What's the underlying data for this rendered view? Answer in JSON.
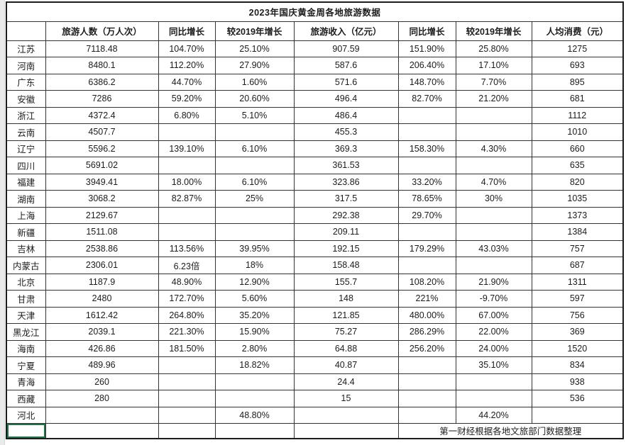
{
  "title": "2023年国庆黄金周各地旅游数据",
  "source_note": "第一财经根据各地文旅部门数据整理",
  "colors": {
    "grid_line": "#333333",
    "outer_border": "#1c1c1c",
    "selection_green": "#217346",
    "text": "#1c1c1c",
    "page_margin_gray": "#eaeaea"
  },
  "table": {
    "headers": [
      "",
      "旅游人数（万人次）",
      "同比增长",
      "较2019年增长",
      "旅游收入（亿元）",
      "同比增长",
      "较2019年增长",
      "人均消费（元）"
    ],
    "rows": [
      [
        "江苏",
        "7118.48",
        "104.70%",
        "25.10%",
        "907.59",
        "151.90%",
        "25.80%",
        "1275"
      ],
      [
        "河南",
        "8480.1",
        "112.20%",
        "27.90%",
        "587.6",
        "206.40%",
        "17.10%",
        "693"
      ],
      [
        "广东",
        "6386.2",
        "44.70%",
        "1.60%",
        "571.6",
        "148.70%",
        "7.70%",
        "895"
      ],
      [
        "安徽",
        "7286",
        "59.20%",
        "20.60%",
        "496.4",
        "82.70%",
        "21.20%",
        "681"
      ],
      [
        "浙江",
        "4372.4",
        "6.80%",
        "5.10%",
        "486.4",
        "",
        "",
        "1112"
      ],
      [
        "云南",
        "4507.7",
        "",
        "",
        "455.3",
        "",
        "",
        "1010"
      ],
      [
        "辽宁",
        "5596.2",
        "139.10%",
        "6.10%",
        "369.3",
        "158.30%",
        "4.30%",
        "660"
      ],
      [
        "四川",
        "5691.02",
        "",
        "",
        "361.53",
        "",
        "",
        "635"
      ],
      [
        "福建",
        "3949.41",
        "18.00%",
        "6.10%",
        "323.86",
        "33.20%",
        "4.70%",
        "820"
      ],
      [
        "湖南",
        "3068.2",
        "82.87%",
        "25%",
        "317.5",
        "78.65%",
        "30%",
        "1035"
      ],
      [
        "上海",
        "2129.67",
        "",
        "",
        "292.38",
        "29.70%",
        "",
        "1373"
      ],
      [
        "新疆",
        "1511.08",
        "",
        "",
        "209.11",
        "",
        "",
        "1384"
      ],
      [
        "吉林",
        "2538.86",
        "113.56%",
        "39.95%",
        "192.15",
        "179.29%",
        "43.03%",
        "757"
      ],
      [
        "内蒙古",
        "2306.01",
        "6.23倍",
        "18%",
        "158.48",
        "",
        "",
        "687"
      ],
      [
        "北京",
        "1187.9",
        "48.90%",
        "12.90%",
        "155.7",
        "108.20%",
        "21.90%",
        "1311"
      ],
      [
        "甘肃",
        "2480",
        "172.70%",
        "5.60%",
        "148",
        "221%",
        "-9.70%",
        "597"
      ],
      [
        "天津",
        "1612.42",
        "264.80%",
        "35.20%",
        "121.85",
        "480.00%",
        "67.00%",
        "756"
      ],
      [
        "黑龙江",
        "2039.1",
        "221.30%",
        "15.90%",
        "75.27",
        "286.29%",
        "22.00%",
        "369"
      ],
      [
        "海南",
        "426.86",
        "181.50%",
        "2.80%",
        "64.88",
        "256.20%",
        "24.00%",
        "1520"
      ],
      [
        "宁夏",
        "489.96",
        "",
        "18.82%",
        "40.87",
        "",
        "35.10%",
        "834"
      ],
      [
        "青海",
        "260",
        "",
        "",
        "24.4",
        "",
        "",
        "938"
      ],
      [
        "西藏",
        "280",
        "",
        "",
        "15",
        "",
        "",
        "536"
      ],
      [
        "河北",
        "",
        "",
        "48.80%",
        "",
        "",
        "44.20%",
        ""
      ]
    ],
    "footer_empty_cells": 5
  }
}
